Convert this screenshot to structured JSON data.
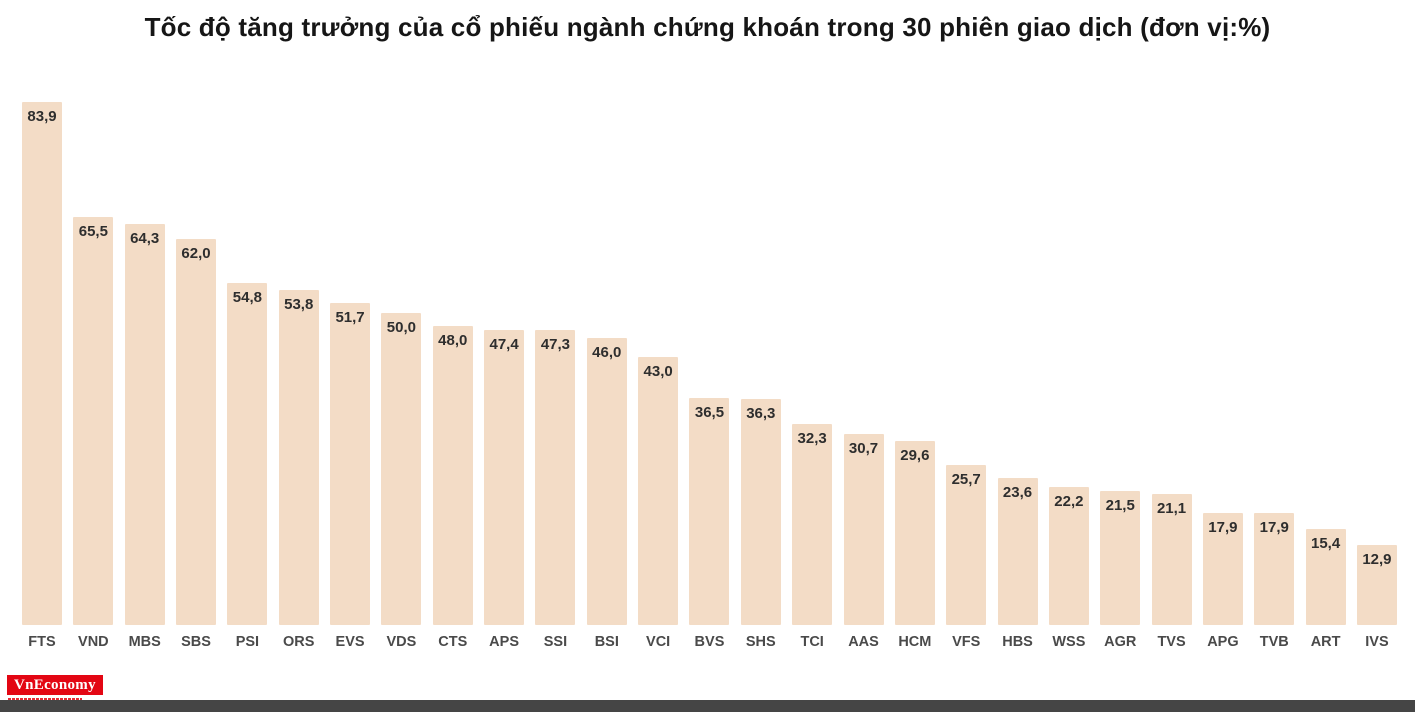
{
  "page": {
    "title": "Tốc độ tăng trưởng của cổ phiếu ngành chứng khoán trong 30 phiên giao dịch (đơn vị:%)"
  },
  "chart_data": {
    "type": "bar",
    "title": "Tốc độ tăng trưởng của cổ phiếu ngành chứng khoán trong 30 phiên giao dịch (đơn vị:%)",
    "unit": "%",
    "categories": [
      "FTS",
      "VND",
      "MBS",
      "SBS",
      "PSI",
      "ORS",
      "EVS",
      "VDS",
      "CTS",
      "APS",
      "SSI",
      "BSI",
      "VCI",
      "BVS",
      "SHS",
      "TCI",
      "AAS",
      "HCM",
      "VFS",
      "HBS",
      "WSS",
      "AGR",
      "TVS",
      "APG",
      "TVB",
      "ART",
      "IVS"
    ],
    "values": [
      83.9,
      65.5,
      64.3,
      62.0,
      54.8,
      53.8,
      51.7,
      50.0,
      48.0,
      47.4,
      47.3,
      46.0,
      43.0,
      36.5,
      36.3,
      32.3,
      30.7,
      29.6,
      25.7,
      23.6,
      22.2,
      21.5,
      21.1,
      17.9,
      17.9,
      15.4,
      12.9
    ],
    "labels": [
      "83,9",
      "65,5",
      "64,3",
      "62,0",
      "54,8",
      "53,8",
      "51,7",
      "50,0",
      "48,0",
      "47,4",
      "47,3",
      "46,0",
      "43,0",
      "36,5",
      "36,3",
      "32,3",
      "30,7",
      "29,6",
      "25,7",
      "23,6",
      "22,2",
      "21,5",
      "21,1",
      "17,9",
      "17,9",
      "15,4",
      "12,9"
    ],
    "ylim": [
      0,
      90
    ],
    "grid": false,
    "legend": "none",
    "bar_color": "#f3dcc6",
    "value_label_color": "#2e2e2e",
    "tick_label_color": "#4a4a4a"
  },
  "branding": {
    "logo_text": "VnEconomy",
    "logo_bg": "#e30613",
    "logo_text_color": "#ffffff"
  }
}
